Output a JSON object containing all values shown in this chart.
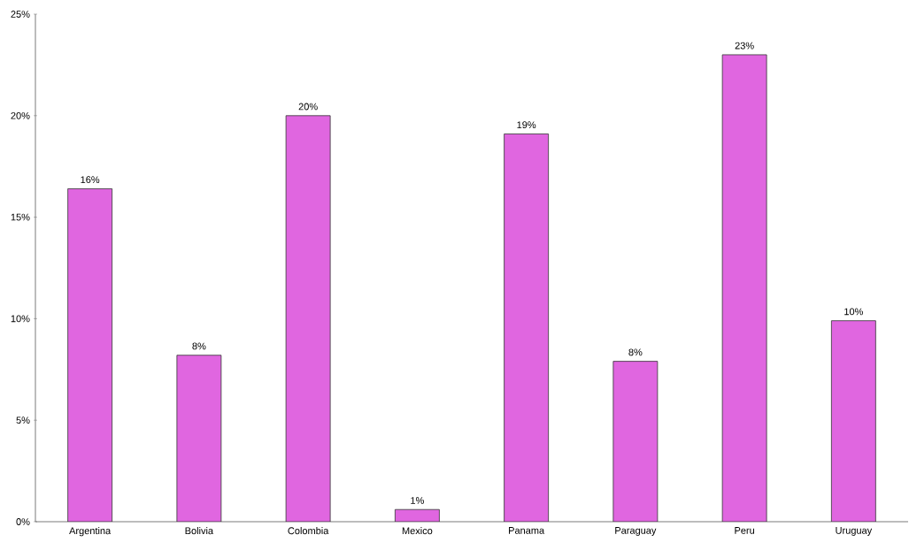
{
  "chart_data": {
    "type": "bar",
    "categories": [
      "Argentina",
      "Bolivia",
      "Colombia",
      "Mexico",
      "Panama",
      "Paraguay",
      "Peru",
      "Uruguay"
    ],
    "values": [
      16.4,
      8.2,
      20.0,
      0.6,
      19.1,
      7.9,
      23.0,
      9.9
    ],
    "value_labels": [
      "16%",
      "8%",
      "20%",
      "1%",
      "19%",
      "8%",
      "23%",
      "10%"
    ],
    "color": "#e066e0",
    "ylim": [
      0,
      25
    ],
    "yticks": [
      {
        "value": 0,
        "label": "0%"
      },
      {
        "value": 5,
        "label": "5%"
      },
      {
        "value": 10,
        "label": "10%"
      },
      {
        "value": 15,
        "label": "15%"
      },
      {
        "value": 20,
        "label": "20%"
      },
      {
        "value": 25,
        "label": "25%"
      }
    ],
    "grid": false
  }
}
